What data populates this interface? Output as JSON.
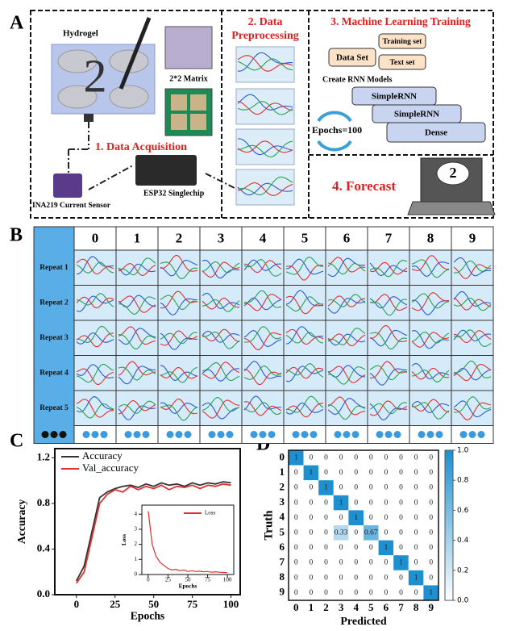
{
  "panel_labels": [
    "A",
    "B",
    "C",
    "D"
  ],
  "workflow": {
    "hydrogel": "Hydrogel",
    "written_digit": "2",
    "matrix": "2*2 Matrix",
    "step1": "1. Data Acquisition",
    "sensor": "INA219 Current Sensor",
    "chip": "ESP32 Singlechip",
    "step2": [
      "2. Data",
      "Preprocessing"
    ],
    "step3": "3. Machine Learning Training",
    "dataset": "Data Set",
    "training": "Training set",
    "test": "Text set",
    "models": "Create RNN Models",
    "layers": [
      "SimpleRNN",
      "SimpleRNN",
      "Dense"
    ],
    "epochs": "Epochs=100",
    "step4": "4. Forecast",
    "screen_digit": "2"
  },
  "table": {
    "columns": [
      "0",
      "1",
      "2",
      "3",
      "4",
      "5",
      "6",
      "7",
      "8",
      "9"
    ],
    "rows": [
      "Repeat 1",
      "Repeat 2",
      "Repeat 3",
      "Repeat 4",
      "Repeat 5"
    ]
  },
  "chart_data": [
    {
      "type": "line",
      "xlabel": "Epochs",
      "ylabel": "Accuracy",
      "x": [
        0,
        5,
        10,
        15,
        20,
        25,
        30,
        35,
        40,
        45,
        50,
        55,
        60,
        65,
        70,
        75,
        80,
        85,
        90,
        95,
        100
      ],
      "series": [
        {
          "name": "Accuracy",
          "color": "#333333",
          "values": [
            0.12,
            0.25,
            0.55,
            0.85,
            0.9,
            0.93,
            0.95,
            0.96,
            0.94,
            0.97,
            0.95,
            0.98,
            0.96,
            0.97,
            0.95,
            0.98,
            0.96,
            0.98,
            0.97,
            0.99,
            0.98
          ]
        },
        {
          "name": "Val_accuracy",
          "color": "#e03030",
          "values": [
            0.1,
            0.2,
            0.5,
            0.8,
            0.88,
            0.92,
            0.9,
            0.95,
            0.92,
            0.95,
            0.93,
            0.96,
            0.92,
            0.95,
            0.94,
            0.96,
            0.93,
            0.96,
            0.95,
            0.97,
            0.96
          ]
        }
      ],
      "xlim": [
        -14,
        106
      ],
      "ylim": [
        0,
        1.28
      ],
      "xticks": [
        0,
        25,
        50,
        75,
        100
      ],
      "yticks": [
        {
          "value": 0,
          "label": "0.0"
        },
        {
          "value": 0.4,
          "label": "0.4"
        },
        {
          "value": 0.8,
          "label": "0.8"
        },
        {
          "value": 1.2,
          "label": "1.2"
        }
      ],
      "legend": "upper left"
    },
    {
      "type": "line",
      "xlabel": "Epochs",
      "ylabel": "Loss",
      "x": [
        0,
        5,
        10,
        15,
        20,
        25,
        30,
        35,
        40,
        45,
        50,
        55,
        60,
        65,
        70,
        75,
        80,
        85,
        90,
        95,
        100
      ],
      "series": [
        {
          "name": "Loss",
          "color": "#e03030",
          "values": [
            4.2,
            2.0,
            1.2,
            0.8,
            0.6,
            0.4,
            0.3,
            0.35,
            0.25,
            0.3,
            0.2,
            0.25,
            0.2,
            0.22,
            0.18,
            0.2,
            0.15,
            0.18,
            0.15,
            0.14,
            0.12
          ]
        }
      ],
      "xlim": [
        -8,
        108
      ],
      "ylim": [
        0,
        4.6
      ],
      "xticks": [
        0,
        25,
        50,
        75,
        100
      ],
      "yticks": [
        0,
        1,
        2,
        3,
        4
      ],
      "legend": "upper right"
    },
    {
      "type": "heatmap",
      "xlabel": "Predicted",
      "ylabel": "Truth",
      "color": "#1e90d0",
      "x_categories": [
        "0",
        "1",
        "2",
        "3",
        "4",
        "5",
        "6",
        "7",
        "8",
        "9"
      ],
      "y_categories": [
        "0",
        "1",
        "2",
        "3",
        "4",
        "5",
        "6",
        "7",
        "8",
        "9"
      ],
      "values": [
        [
          1,
          0,
          0,
          0,
          0,
          0,
          0,
          0,
          0,
          0
        ],
        [
          0,
          1,
          0,
          0,
          0,
          0,
          0,
          0,
          0,
          0
        ],
        [
          0,
          0,
          1,
          0,
          0,
          0,
          0,
          0,
          0,
          0
        ],
        [
          0,
          0,
          0,
          1,
          0,
          0,
          0,
          0,
          0,
          0
        ],
        [
          0,
          0,
          0,
          0,
          1,
          0,
          0,
          0,
          0,
          0
        ],
        [
          0,
          0,
          0,
          0.33,
          0,
          0.67,
          0,
          0,
          0,
          0
        ],
        [
          0,
          0,
          0,
          0,
          0,
          0,
          1,
          0,
          0,
          0
        ],
        [
          0,
          0,
          0,
          0,
          0,
          0,
          0,
          1,
          0,
          0
        ],
        [
          0,
          0,
          0,
          0,
          0,
          0,
          0,
          0,
          1,
          0
        ],
        [
          0,
          0,
          0,
          0,
          0,
          0,
          0,
          0,
          0,
          1
        ]
      ],
      "clim": [
        0,
        1
      ],
      "cticks": [
        {
          "value": 0,
          "label": "0.0"
        },
        {
          "value": 0.2,
          "label": "0.2"
        },
        {
          "value": 0.4,
          "label": "0.4"
        },
        {
          "value": 0.6,
          "label": "0.6"
        },
        {
          "value": 0.8,
          "label": "0.8"
        },
        {
          "value": 1,
          "label": "1.0"
        }
      ]
    }
  ]
}
